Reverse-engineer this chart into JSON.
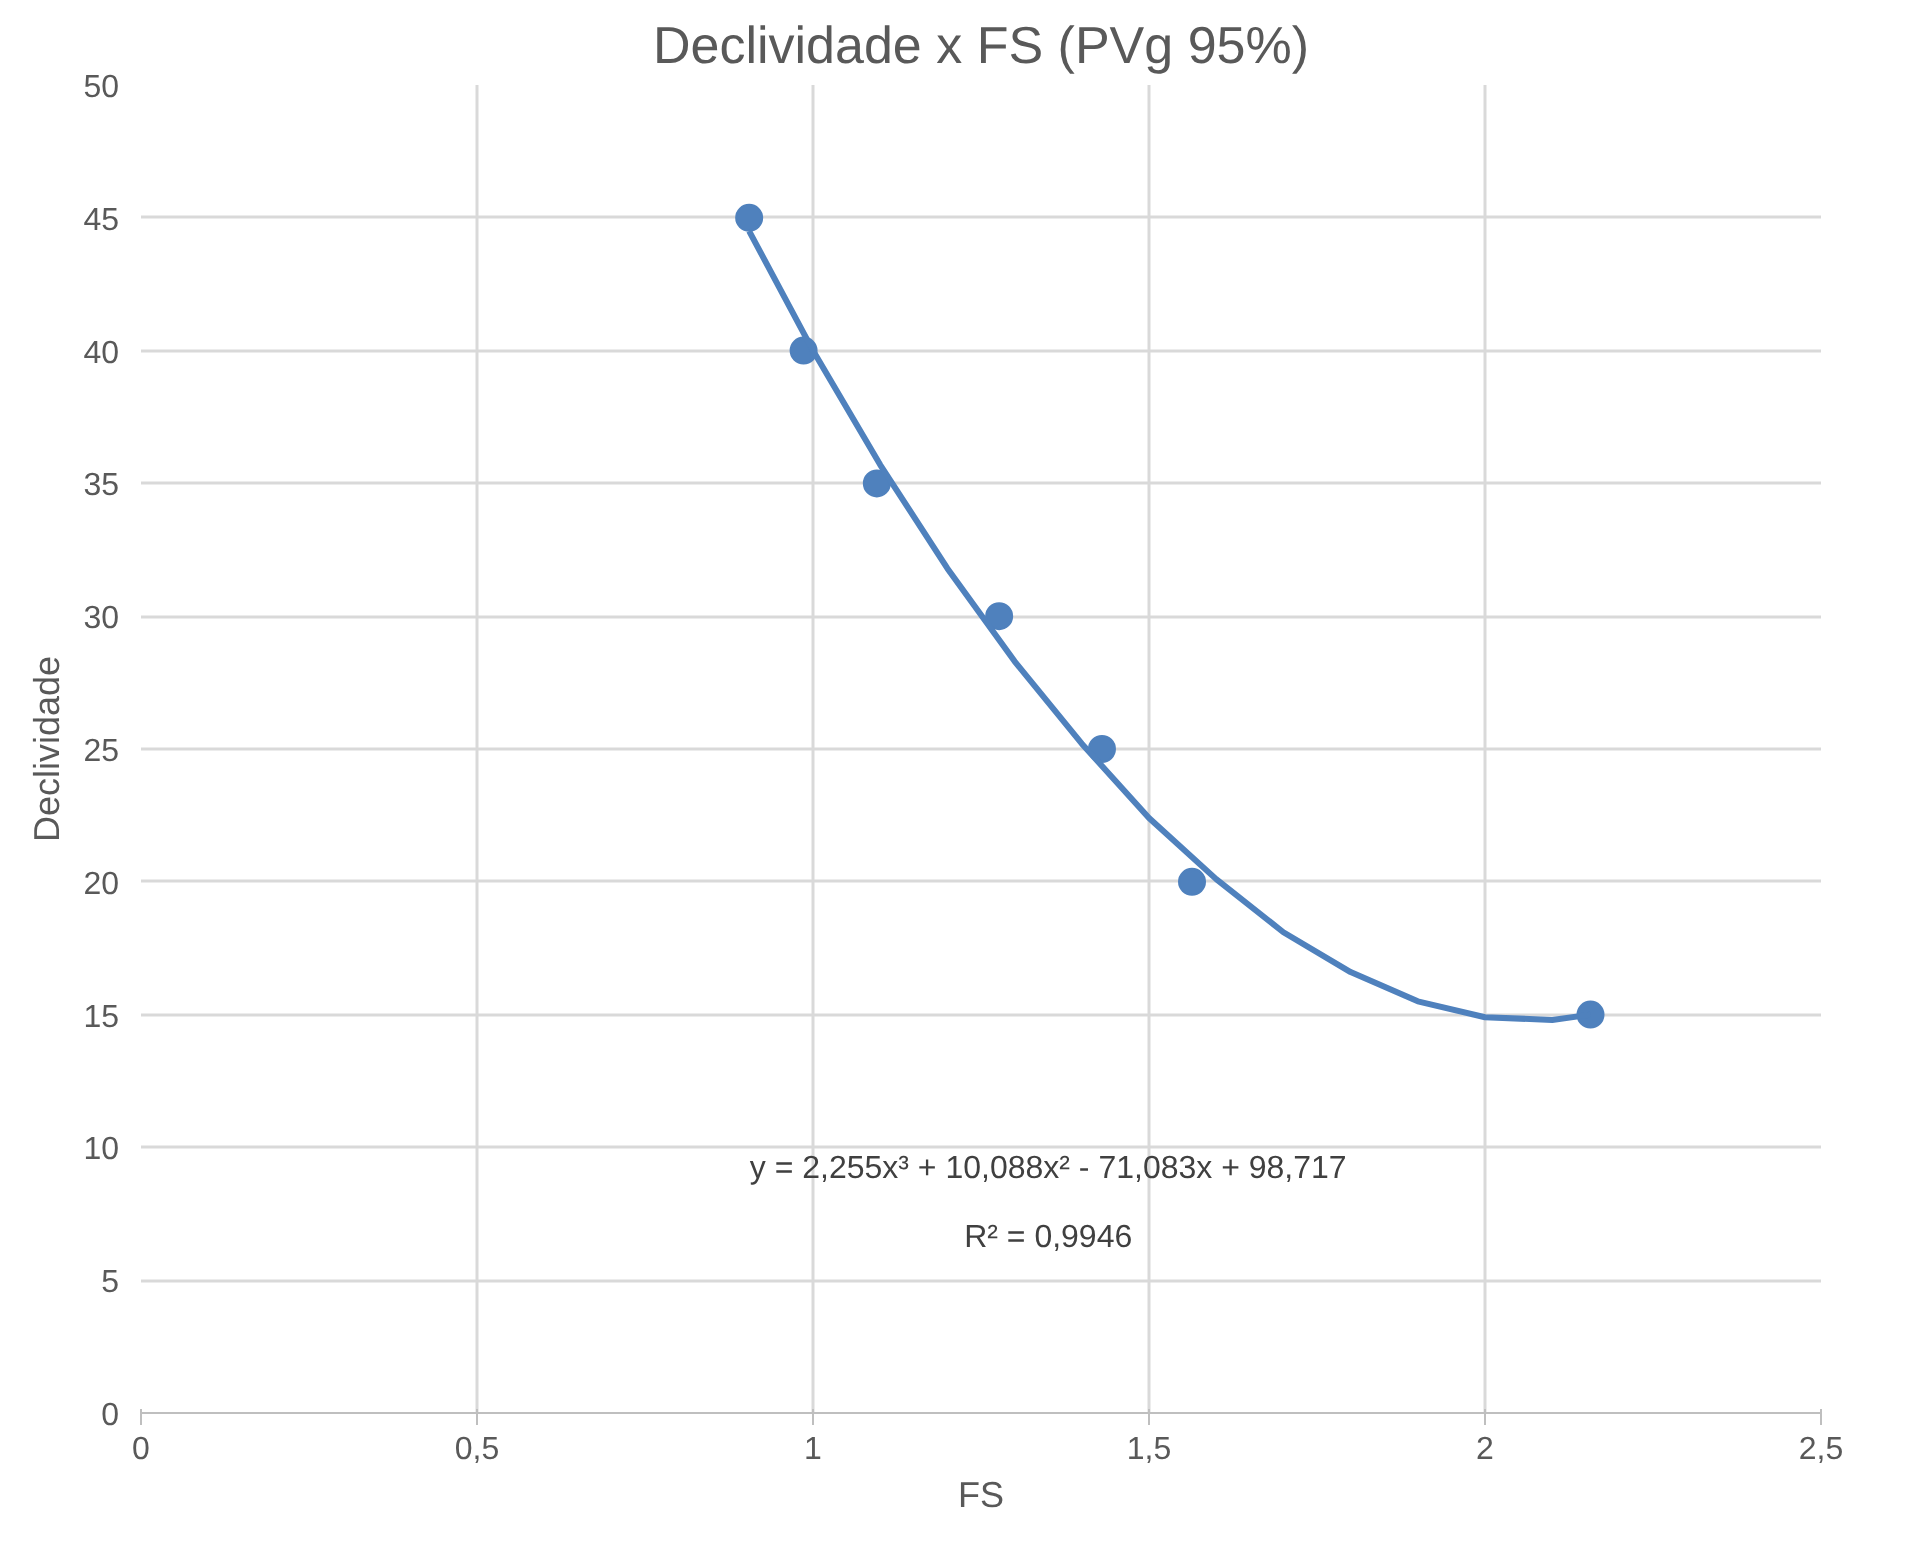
{
  "chart_data": {
    "type": "scatter",
    "title": "Declividade x FS (PVg 95%)",
    "xlabel": "FS",
    "ylabel": "Declividade",
    "xlim": [
      0,
      2.5
    ],
    "xticks": [
      0,
      {
        "value": 0.5,
        "label": "0,5"
      },
      1,
      {
        "value": 1.5,
        "label": "1,5"
      },
      2,
      {
        "value": 2.5,
        "label": "2,5"
      }
    ],
    "ylim": [
      0,
      50
    ],
    "yticks": [
      0,
      5,
      10,
      15,
      20,
      25,
      30,
      35,
      40,
      45,
      50
    ],
    "grid": true,
    "series": [
      {
        "color": "#4f81bd",
        "marker": "circle",
        "x": [
          0.905,
          0.986,
          1.095,
          1.277,
          1.43,
          1.564,
          2.157
        ],
        "values": [
          45,
          40,
          35,
          30,
          25,
          20,
          15
        ]
      },
      {
        "type": "line",
        "color": "#4f81bd",
        "x": [
          0.905,
          1.0,
          1.1,
          1.2,
          1.3,
          1.4,
          1.5,
          1.6,
          1.7,
          1.8,
          1.9,
          2.0,
          2.1,
          2.157
        ],
        "values": [
          44.5,
          40.0,
          35.7,
          31.8,
          28.3,
          25.2,
          22.4,
          20.1,
          18.1,
          16.6,
          15.5,
          14.9,
          14.8,
          15.0
        ]
      }
    ],
    "annotations": [
      "y = 2,255x³ + 10,088x² - 71,083x + 98,717",
      "R² = 0,9946"
    ]
  }
}
